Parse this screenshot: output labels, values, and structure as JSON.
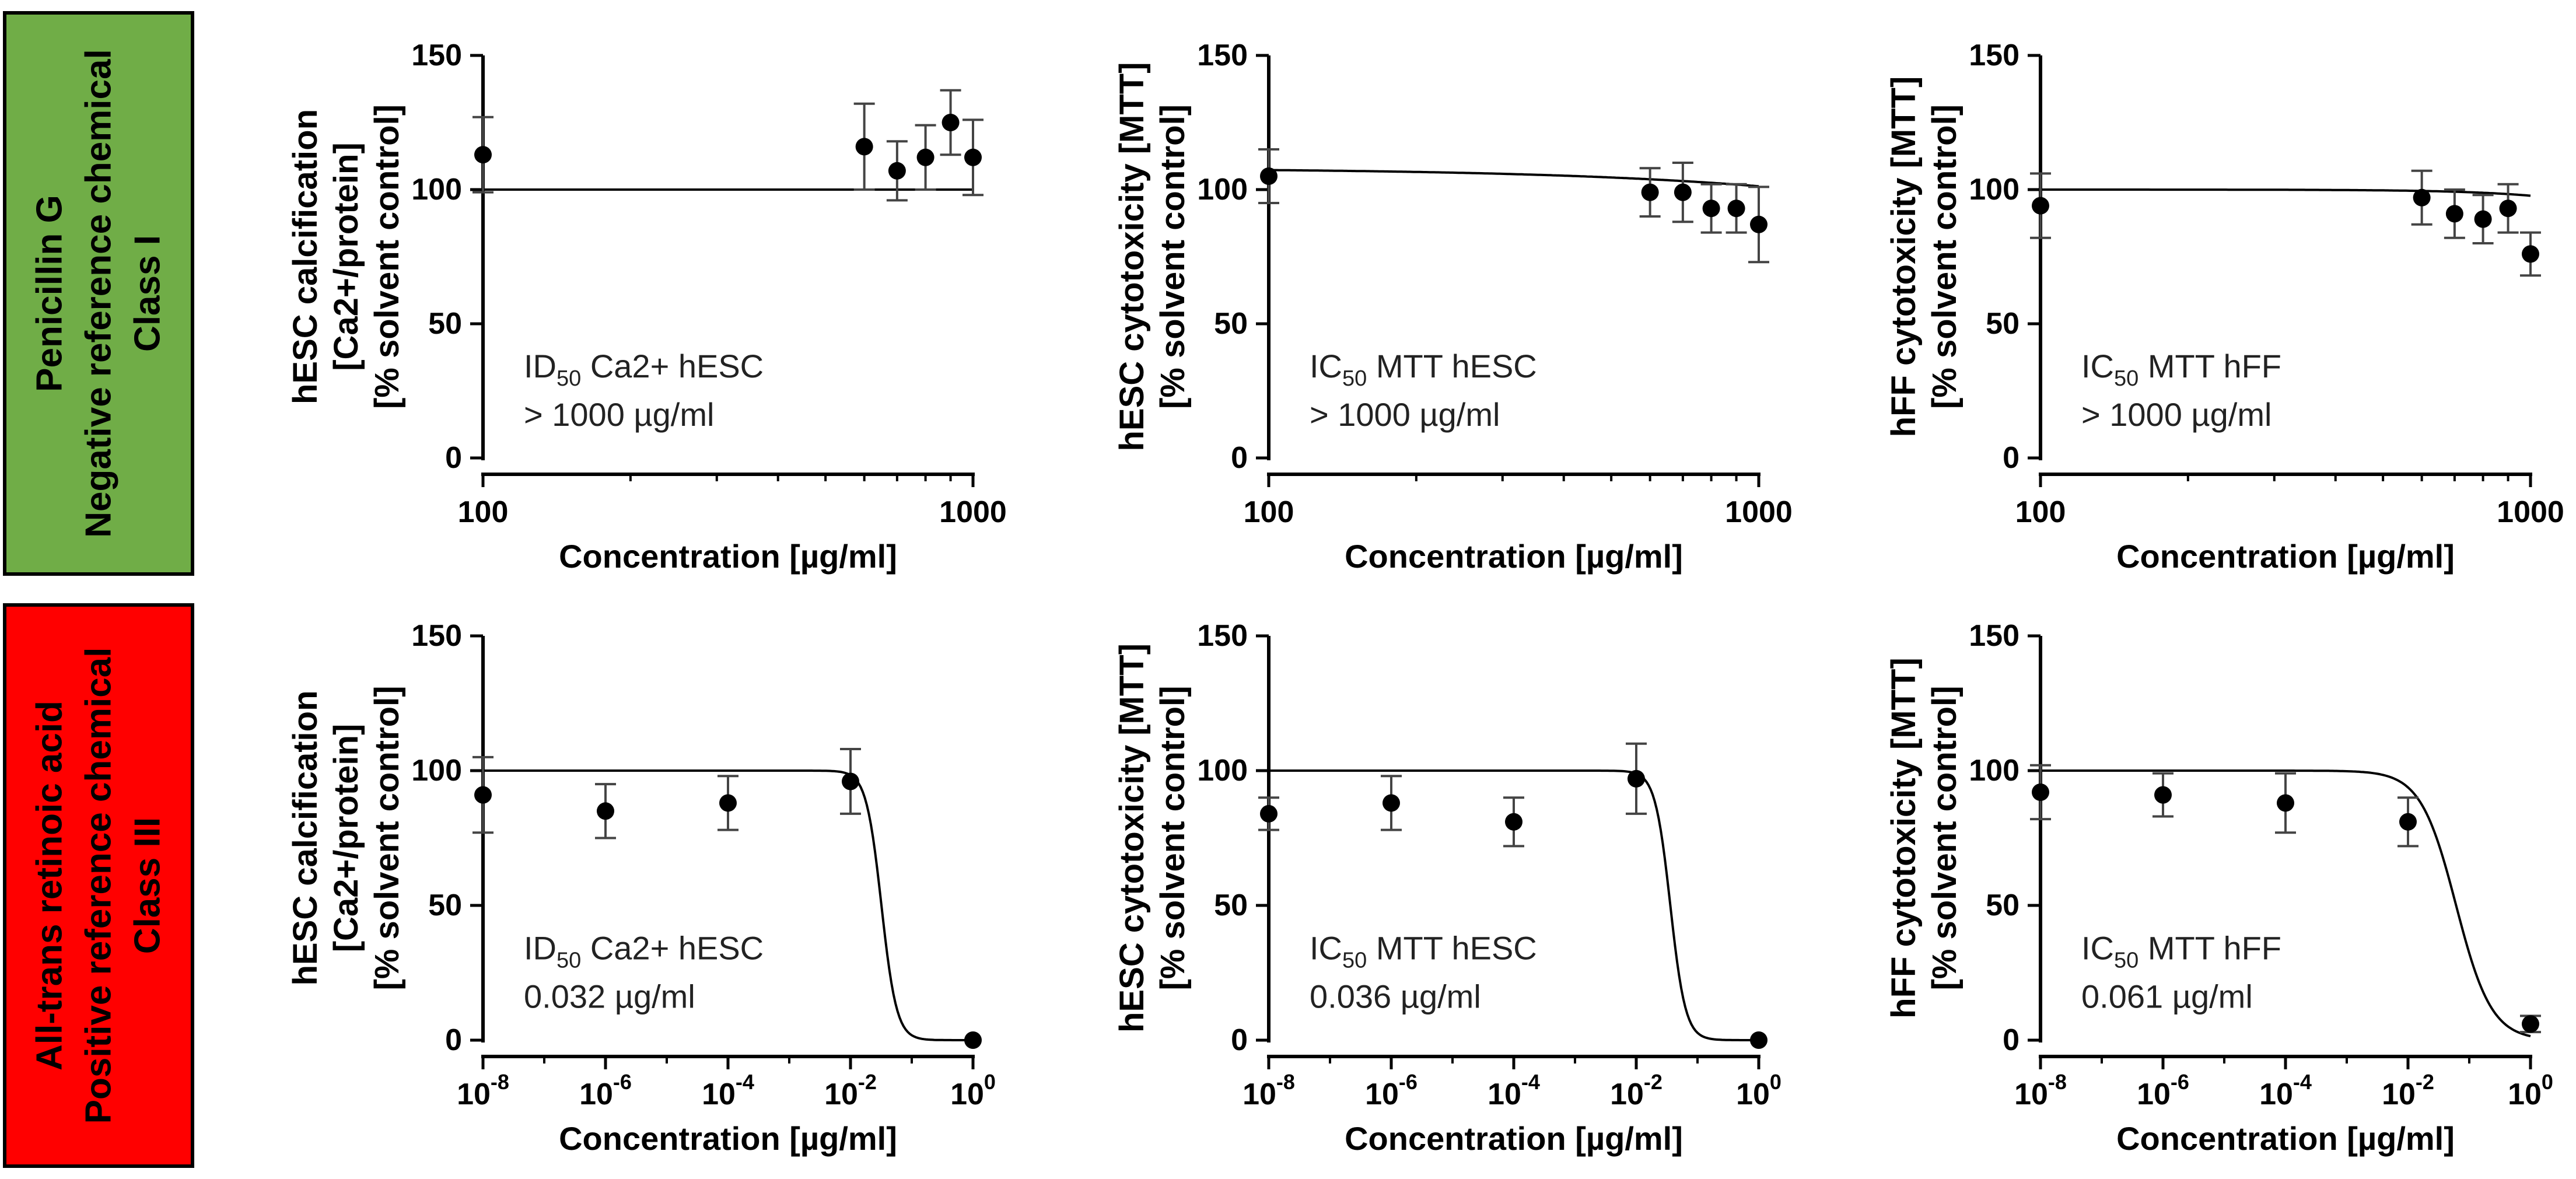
{
  "row_labels": [
    {
      "lines": [
        "Penicillin G",
        "Negative reference chemical",
        "Class I"
      ],
      "color": "#70ad47"
    },
    {
      "lines": [
        "All-trans retinoic acid",
        "Positive reference chemical",
        "Class III"
      ],
      "color": "#ff0000"
    }
  ],
  "chart_data": [
    {
      "type": "scatter",
      "row": 0,
      "col": 0,
      "xscale": "log",
      "xlim": [
        100,
        1000
      ],
      "ylim": [
        0,
        150
      ],
      "xticks": [
        {
          "v": 100,
          "label": "100"
        },
        {
          "v": 1000,
          "label": "1000"
        }
      ],
      "yticks": [
        0,
        50,
        100,
        150
      ],
      "ylabel": [
        "hESC calcification",
        "[Ca2+/protein]",
        "[% solvent control]"
      ],
      "xlabel": "Concentration [µg/ml]",
      "annotation": {
        "sym": "ID",
        "sub": "50",
        "rest": " Ca2+ hESC",
        "value": "> 1000 µg/ml"
      },
      "points": [
        {
          "x": 100,
          "y": 113,
          "err": 14
        },
        {
          "x": 600,
          "y": 116,
          "err": 16
        },
        {
          "x": 700,
          "y": 107,
          "err": 11
        },
        {
          "x": 800,
          "y": 112,
          "err": 12
        },
        {
          "x": 900,
          "y": 125,
          "err": 12
        },
        {
          "x": 1000,
          "y": 112,
          "err": 14
        }
      ],
      "fit": {
        "top": 100,
        "bottom": 0,
        "ic50": 1000000000000.0,
        "hill": 1
      }
    },
    {
      "type": "scatter",
      "row": 0,
      "col": 1,
      "xscale": "log",
      "xlim": [
        100,
        1000
      ],
      "ylim": [
        0,
        150
      ],
      "xticks": [
        {
          "v": 100,
          "label": "100"
        },
        {
          "v": 1000,
          "label": "1000"
        }
      ],
      "yticks": [
        0,
        50,
        100,
        150
      ],
      "ylabel": [
        "hESC cytotoxicity [MTT]",
        "[% solvent control]"
      ],
      "xlabel": "Concentration [µg/ml]",
      "annotation": {
        "sym": "IC",
        "sub": "50",
        "rest": " MTT hESC",
        "value": "> 1000 µg/ml"
      },
      "points": [
        {
          "x": 100,
          "y": 105,
          "err": 10
        },
        {
          "x": 600,
          "y": 99,
          "err": 9
        },
        {
          "x": 700,
          "y": 99,
          "err": 11
        },
        {
          "x": 800,
          "y": 93,
          "err": 9
        },
        {
          "x": 900,
          "y": 93,
          "err": 9
        },
        {
          "x": 1000,
          "y": 87,
          "err": 14
        }
      ],
      "fit": {
        "top": 108,
        "bottom": 0,
        "ic50": 15000,
        "hill": 1
      }
    },
    {
      "type": "scatter",
      "row": 0,
      "col": 2,
      "xscale": "log",
      "xlim": [
        100,
        1000
      ],
      "ylim": [
        0,
        150
      ],
      "xticks": [
        {
          "v": 100,
          "label": "100"
        },
        {
          "v": 1000,
          "label": "1000"
        }
      ],
      "yticks": [
        0,
        50,
        100,
        150
      ],
      "ylabel": [
        "hFF cytotoxicity [MTT]",
        "[% solvent control]"
      ],
      "xlabel": "Concentration [µg/ml]",
      "annotation": {
        "sym": "IC",
        "sub": "50",
        "rest": " MTT hFF",
        "value": "> 1000 µg/ml"
      },
      "points": [
        {
          "x": 100,
          "y": 94,
          "err": 12
        },
        {
          "x": 600,
          "y": 97,
          "err": 10
        },
        {
          "x": 700,
          "y": 91,
          "err": 9
        },
        {
          "x": 800,
          "y": 89,
          "err": 9
        },
        {
          "x": 900,
          "y": 93,
          "err": 9
        },
        {
          "x": 1000,
          "y": 76,
          "err": 8
        }
      ],
      "fit": {
        "top": 100,
        "bottom": 0,
        "ic50": 3500,
        "hill": 3
      }
    },
    {
      "type": "scatter",
      "row": 1,
      "col": 0,
      "xscale": "log",
      "xlim": [
        1e-08,
        1
      ],
      "ylim": [
        0,
        150
      ],
      "xticks": [
        {
          "v": 1e-08,
          "label": "-8"
        },
        {
          "v": 1e-06,
          "label": "-6"
        },
        {
          "v": 0.0001,
          "label": "-4"
        },
        {
          "v": 0.01,
          "label": "-2"
        },
        {
          "v": 1,
          "label": "0"
        }
      ],
      "tick_base": "10",
      "yticks": [
        0,
        50,
        100,
        150
      ],
      "ylabel": [
        "hESC calcification",
        "[Ca2+/protein]",
        "[% solvent control]"
      ],
      "xlabel": "Concentration [µg/ml]",
      "annotation": {
        "sym": "ID",
        "sub": "50",
        "rest": " Ca2+ hESC",
        "value": "0.032 µg/ml"
      },
      "points": [
        {
          "x": 1e-08,
          "y": 91,
          "err": 14
        },
        {
          "x": 1e-06,
          "y": 85,
          "err": 10
        },
        {
          "x": 0.0001,
          "y": 88,
          "err": 10
        },
        {
          "x": 0.01,
          "y": 96,
          "err": 12
        },
        {
          "x": 1,
          "y": 0,
          "err": 0
        }
      ],
      "fit": {
        "top": 100,
        "bottom": 0,
        "ic50": 0.032,
        "hill": 3.5
      }
    },
    {
      "type": "scatter",
      "row": 1,
      "col": 1,
      "xscale": "log",
      "xlim": [
        1e-08,
        1
      ],
      "ylim": [
        0,
        150
      ],
      "xticks": [
        {
          "v": 1e-08,
          "label": "-8"
        },
        {
          "v": 1e-06,
          "label": "-6"
        },
        {
          "v": 0.0001,
          "label": "-4"
        },
        {
          "v": 0.01,
          "label": "-2"
        },
        {
          "v": 1,
          "label": "0"
        }
      ],
      "tick_base": "10",
      "yticks": [
        0,
        50,
        100,
        150
      ],
      "ylabel": [
        "hESC cytotoxicity [MTT]",
        "[% solvent control]"
      ],
      "xlabel": "Concentration [µg/ml]",
      "annotation": {
        "sym": "IC",
        "sub": "50",
        "rest": " MTT hESC",
        "value": "0.036 µg/ml"
      },
      "points": [
        {
          "x": 1e-08,
          "y": 84,
          "err": 6
        },
        {
          "x": 1e-06,
          "y": 88,
          "err": 10
        },
        {
          "x": 0.0001,
          "y": 81,
          "err": 9
        },
        {
          "x": 0.01,
          "y": 97,
          "err": 13
        },
        {
          "x": 1,
          "y": 0,
          "err": 0
        }
      ],
      "fit": {
        "top": 100,
        "bottom": 0,
        "ic50": 0.036,
        "hill": 3.5
      }
    },
    {
      "type": "scatter",
      "row": 1,
      "col": 2,
      "xscale": "log",
      "xlim": [
        1e-08,
        1
      ],
      "ylim": [
        0,
        150
      ],
      "xticks": [
        {
          "v": 1e-08,
          "label": "-8"
        },
        {
          "v": 1e-06,
          "label": "-6"
        },
        {
          "v": 0.0001,
          "label": "-4"
        },
        {
          "v": 0.01,
          "label": "-2"
        },
        {
          "v": 1,
          "label": "0"
        }
      ],
      "tick_base": "10",
      "yticks": [
        0,
        50,
        100,
        150
      ],
      "ylabel": [
        "hFF cytotoxicity [MTT]",
        "[% solvent control]"
      ],
      "xlabel": "Concentration [µg/ml]",
      "annotation": {
        "sym": "IC",
        "sub": "50",
        "rest": " MTT hFF",
        "value": "0.061 µg/ml"
      },
      "points": [
        {
          "x": 1e-08,
          "y": 92,
          "err": 10
        },
        {
          "x": 1e-06,
          "y": 91,
          "err": 8
        },
        {
          "x": 0.0001,
          "y": 88,
          "err": 11
        },
        {
          "x": 0.01,
          "y": 81,
          "err": 9
        },
        {
          "x": 1,
          "y": 6,
          "err": 3
        }
      ],
      "fit": {
        "top": 100,
        "bottom": 0,
        "ic50": 0.061,
        "hill": 1.5
      }
    }
  ]
}
